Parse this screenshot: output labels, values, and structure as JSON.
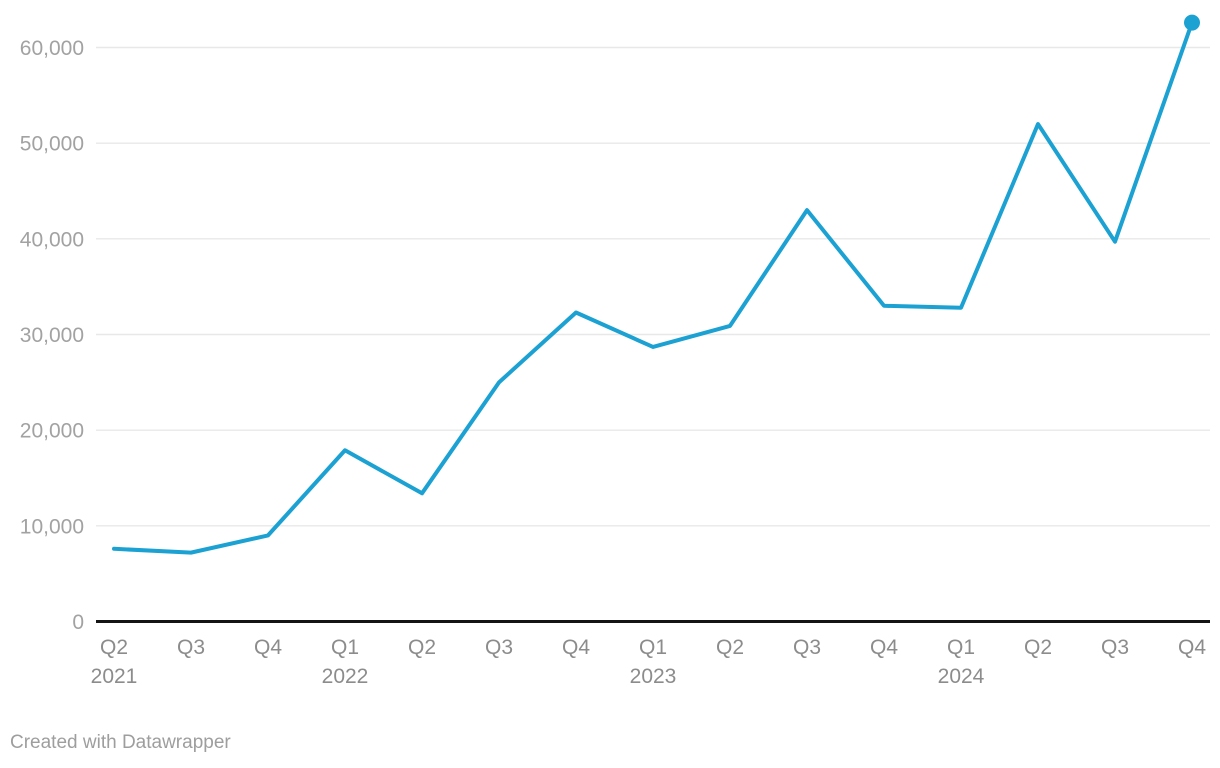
{
  "chart_data": {
    "type": "line",
    "title": "",
    "xlabel": "",
    "ylabel": "",
    "categories": [
      "Q2 2021",
      "Q3 2021",
      "Q4 2021",
      "Q1 2022",
      "Q2 2022",
      "Q3 2022",
      "Q4 2022",
      "Q1 2023",
      "Q2 2023",
      "Q3 2023",
      "Q4 2023",
      "Q1 2024",
      "Q2 2024",
      "Q3 2024",
      "Q4 2024"
    ],
    "tick_quarter_labels": [
      "Q2",
      "Q3",
      "Q4",
      "Q1",
      "Q2",
      "Q3",
      "Q4",
      "Q1",
      "Q2",
      "Q3",
      "Q4",
      "Q1",
      "Q2",
      "Q3",
      "Q4"
    ],
    "year_ticks": [
      {
        "label": "2021",
        "at_index": 0
      },
      {
        "label": "2022",
        "at_index": 3
      },
      {
        "label": "2023",
        "at_index": 7
      },
      {
        "label": "2024",
        "at_index": 11
      }
    ],
    "values": [
      7600,
      7200,
      9000,
      17900,
      13400,
      25000,
      32300,
      28700,
      30900,
      43000,
      33000,
      32800,
      52000,
      39700,
      62600
    ],
    "y_ticks": [
      {
        "value": 0,
        "label": "0"
      },
      {
        "value": 10000,
        "label": "10,000"
      },
      {
        "value": 20000,
        "label": "20,000"
      },
      {
        "value": 30000,
        "label": "30,000"
      },
      {
        "value": 40000,
        "label": "40,000"
      },
      {
        "value": 50000,
        "label": "50,000"
      },
      {
        "value": 60000,
        "label": "60,000"
      }
    ],
    "ylim": [
      0,
      63000
    ],
    "grid": true,
    "legend": "none",
    "line_color": "#1ca1d3",
    "last_point_marker": true
  },
  "footer": {
    "credit": "Created with Datawrapper"
  }
}
